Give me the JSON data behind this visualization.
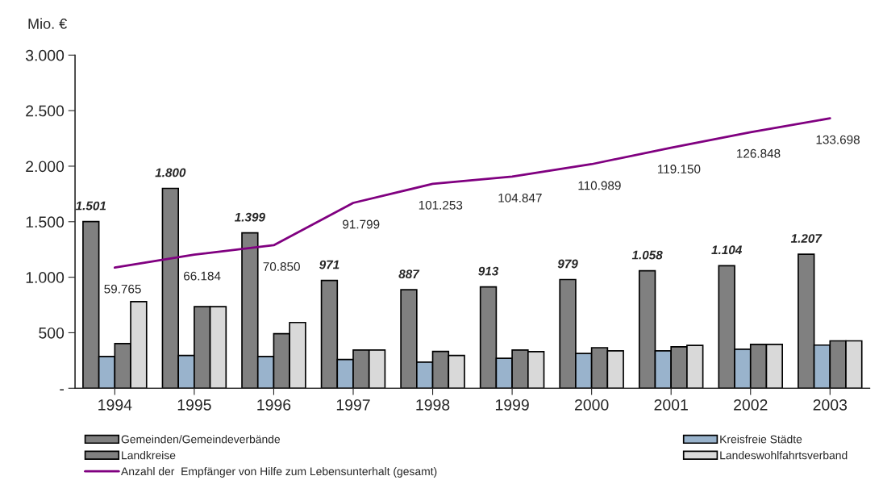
{
  "chart_data": {
    "type": "bar",
    "ylabel": "Mio. €",
    "categories": [
      "1994",
      "1995",
      "1996",
      "1997",
      "1998",
      "1999",
      "2000",
      "2001",
      "2002",
      "2003"
    ],
    "series": [
      {
        "name": "Gemeinden/Gemeindeverbände",
        "color": "#808080",
        "values": [
          1501,
          1800,
          1399,
          971,
          887,
          913,
          979,
          1058,
          1104,
          1207
        ],
        "value_labels": [
          "1.501",
          "1.800",
          "1.399",
          "971",
          "887",
          "913",
          "979",
          "1.058",
          "1.104",
          "1.207"
        ]
      },
      {
        "name": "Kreisfreie Städte",
        "color": "#99b3cc",
        "values": [
          286,
          295,
          286,
          259,
          235,
          270,
          313,
          337,
          351,
          389
        ]
      },
      {
        "name": "Landkreise",
        "color": "#808080",
        "values": [
          402,
          735,
          491,
          344,
          332,
          344,
          365,
          373,
          395,
          427
        ]
      },
      {
        "name": "Landeswohlfahrtsverband",
        "color": "#d9d9d9",
        "values": [
          780,
          735,
          592,
          344,
          295,
          330,
          337,
          386,
          395,
          427
        ]
      },
      {
        "name": "Anzahl der  Empfänger von Hilfe zum Lebensunterhalt (gesamt)",
        "type": "line",
        "axis": "y2",
        "color": "#800080",
        "values": [
          59765,
          66184,
          70850,
          91799,
          101253,
          104847,
          110989,
          119150,
          126848,
          133698
        ],
        "value_labels": [
          "59.765",
          "66.184",
          "70.850",
          "91.799",
          "101.253",
          "104.847",
          "110.989",
          "119.150",
          "126.848",
          "133.698"
        ]
      }
    ],
    "ylim": [
      0,
      3000
    ],
    "yticks": [
      {
        "value": 0,
        "label": "-"
      },
      500,
      {
        "value": 1000,
        "label": "1.000"
      },
      {
        "value": 1500,
        "label": "1.500"
      },
      {
        "value": 2000,
        "label": "2.000"
      },
      {
        "value": 2500,
        "label": "2.500"
      },
      {
        "value": 3000,
        "label": "3.000"
      }
    ],
    "y2lim": [
      0,
      165000
    ],
    "grid": false,
    "legend": "bottom"
  }
}
